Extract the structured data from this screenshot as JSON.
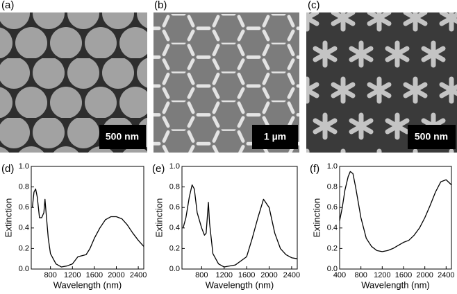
{
  "images": [
    {
      "label": "(a)",
      "scale_bar": "500 nm"
    },
    {
      "label": "(b)",
      "scale_bar": "1 µm"
    },
    {
      "label": "(c)",
      "scale_bar": "500 nm"
    }
  ],
  "chart_data": [
    {
      "type": "line",
      "label": "(d)",
      "xlabel": "Wavelength (nm)",
      "ylabel": "Extinction",
      "xlim": [
        450,
        2500
      ],
      "ylim": [
        0,
        1
      ],
      "color": "#000000",
      "xticks": [
        800,
        1200,
        1600,
        2000,
        2400
      ],
      "yticks": [
        {
          "value": 0,
          "label": "0.0"
        },
        {
          "value": 0.2,
          "label": "0.2"
        },
        {
          "value": 0.4,
          "label": "0.4"
        },
        {
          "value": 0.6,
          "label": "0.6"
        },
        {
          "value": 0.8,
          "label": "0.8"
        },
        {
          "value": 1,
          "label": "1.0"
        }
      ],
      "x": [
        470,
        500,
        530,
        560,
        600,
        640,
        680,
        700,
        720,
        760,
        800,
        900,
        1000,
        1100,
        1200,
        1300,
        1450,
        1520,
        1560,
        1600,
        1700,
        1800,
        1900,
        2000,
        2100,
        2200,
        2300,
        2400,
        2500
      ],
      "values": [
        0.6,
        0.75,
        0.78,
        0.7,
        0.5,
        0.5,
        0.55,
        0.68,
        0.55,
        0.3,
        0.15,
        0.05,
        0.02,
        0.03,
        0.05,
        0.12,
        0.14,
        0.2,
        0.25,
        0.3,
        0.4,
        0.48,
        0.51,
        0.51,
        0.49,
        0.43,
        0.35,
        0.28,
        0.22
      ]
    },
    {
      "type": "line",
      "label": "(e)",
      "xlabel": "Wavelength (nm)",
      "ylabel": "Extinction",
      "xlim": [
        450,
        2500
      ],
      "ylim": [
        0,
        1
      ],
      "color": "#000000",
      "xticks": [
        800,
        1200,
        1600,
        2000,
        2400
      ],
      "yticks": [
        {
          "value": 0,
          "label": "0.0"
        },
        {
          "value": 0.2,
          "label": "0.2"
        },
        {
          "value": 0.4,
          "label": "0.4"
        },
        {
          "value": 0.6,
          "label": "0.6"
        },
        {
          "value": 0.8,
          "label": "0.8"
        },
        {
          "value": 1,
          "label": "1.0"
        }
      ],
      "x": [
        470,
        520,
        580,
        630,
        670,
        720,
        800,
        850,
        880,
        900,
        920,
        940,
        1000,
        1100,
        1200,
        1400,
        1600,
        1700,
        1800,
        1900,
        2000,
        2100,
        2200,
        2300,
        2400,
        2500
      ],
      "values": [
        0.4,
        0.5,
        0.7,
        0.82,
        0.78,
        0.55,
        0.4,
        0.33,
        0.35,
        0.5,
        0.65,
        0.45,
        0.15,
        0.05,
        0.02,
        0.04,
        0.12,
        0.3,
        0.5,
        0.68,
        0.6,
        0.35,
        0.2,
        0.14,
        0.11,
        0.1
      ]
    },
    {
      "type": "line",
      "label": "(f)",
      "xlabel": "Wavelength (nm)",
      "ylabel": "Extinction",
      "xlim": [
        400,
        2500
      ],
      "ylim": [
        0,
        1
      ],
      "color": "#000000",
      "xticks": [
        400,
        800,
        1200,
        1600,
        2000,
        2400
      ],
      "yticks": [
        {
          "value": 0,
          "label": "0.0"
        },
        {
          "value": 0.2,
          "label": "0.2"
        },
        {
          "value": 0.4,
          "label": "0.4"
        },
        {
          "value": 0.6,
          "label": "0.6"
        },
        {
          "value": 0.8,
          "label": "0.8"
        },
        {
          "value": 1,
          "label": "1.0"
        }
      ],
      "x": [
        400,
        450,
        500,
        560,
        600,
        650,
        700,
        800,
        900,
        1000,
        1100,
        1200,
        1300,
        1400,
        1500,
        1600,
        1700,
        1800,
        1900,
        2000,
        2100,
        2200,
        2300,
        2400,
        2500
      ],
      "values": [
        0.47,
        0.6,
        0.77,
        0.9,
        0.95,
        0.93,
        0.8,
        0.5,
        0.3,
        0.22,
        0.18,
        0.17,
        0.18,
        0.2,
        0.23,
        0.26,
        0.28,
        0.33,
        0.4,
        0.5,
        0.62,
        0.75,
        0.85,
        0.87,
        0.82
      ]
    }
  ]
}
